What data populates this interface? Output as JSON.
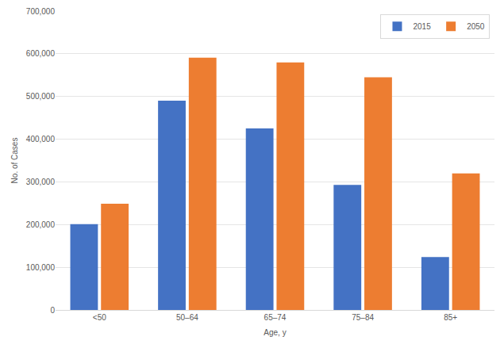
{
  "chart_data": {
    "type": "bar",
    "x_label": "Age, y",
    "y_label": "No. of Cases",
    "categories": [
      "<50",
      "50–64",
      "65–74",
      "75–84",
      "85+"
    ],
    "series": [
      {
        "name": "2015",
        "color": "#4472c4",
        "values": [
          201000,
          490000,
          425000,
          293000,
          124000
        ]
      },
      {
        "name": "2050",
        "color": "#ed7d31",
        "values": [
          249000,
          591000,
          580000,
          545000,
          320000
        ]
      }
    ],
    "ylim": [
      0,
      700000
    ],
    "yticks": [
      0,
      {
        "value": 100000,
        "label": "100,000"
      },
      {
        "value": 200000,
        "label": "200,000"
      },
      {
        "value": 300000,
        "label": "300,000"
      },
      {
        "value": 400000,
        "label": "400,000"
      },
      {
        "value": 500000,
        "label": "500,000"
      },
      {
        "value": 600000,
        "label": "600,000"
      },
      {
        "value": 700000,
        "label": "700,000"
      }
    ],
    "grid": true,
    "legend": "top-right"
  }
}
